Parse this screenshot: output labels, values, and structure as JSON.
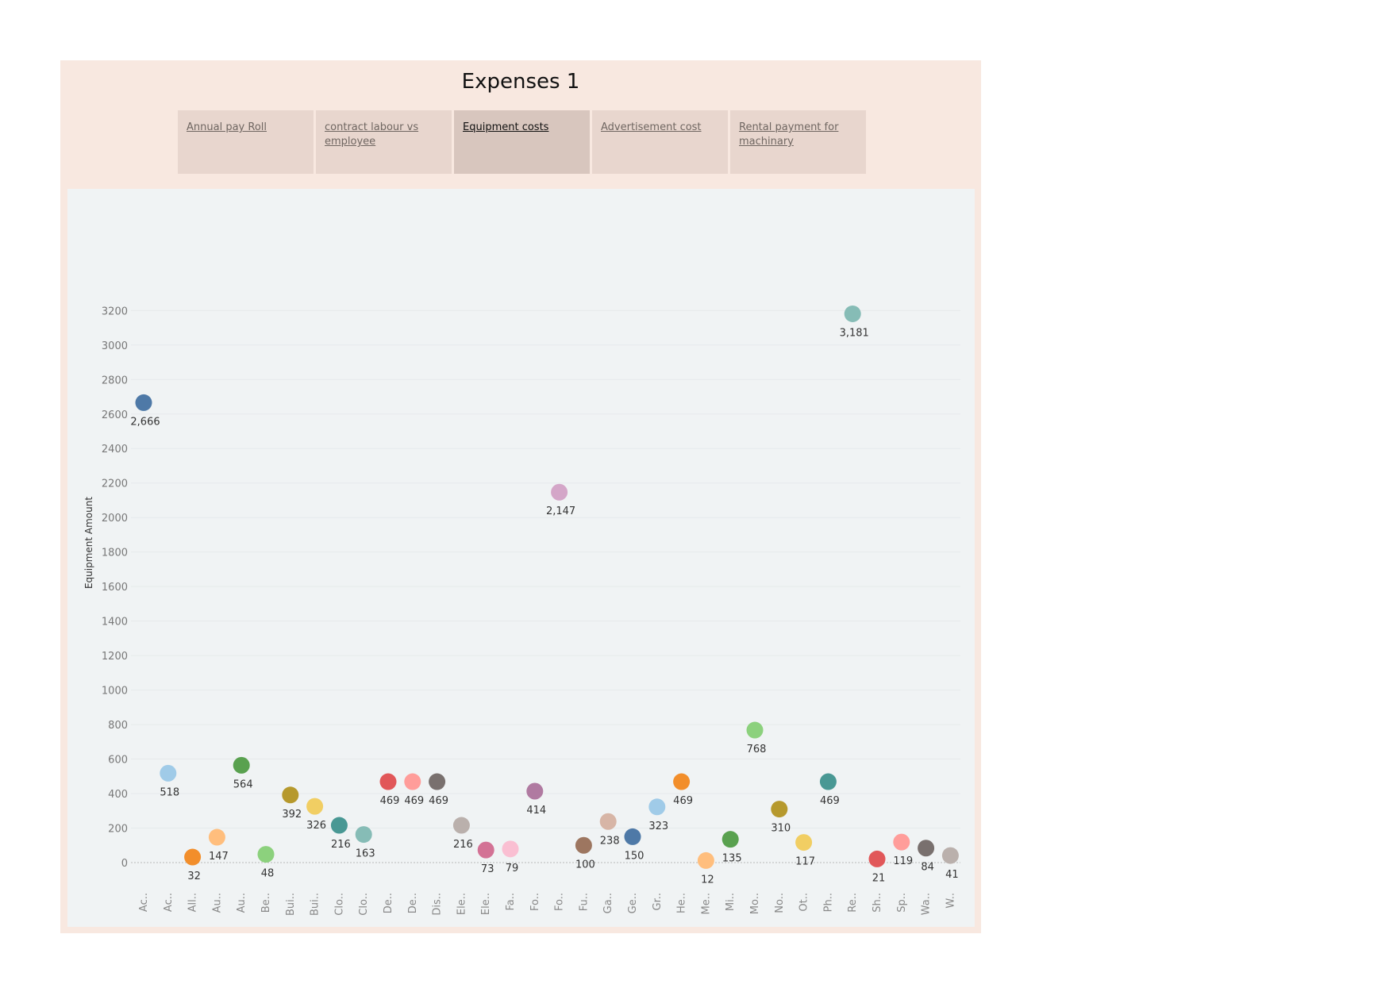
{
  "dashboard": {
    "title": "Expenses 1",
    "tabs": [
      {
        "label": "Annual pay Roll",
        "active": false
      },
      {
        "label": "contract labour vs employee",
        "active": false
      },
      {
        "label": "Equipment costs",
        "active": true
      },
      {
        "label": "Advertisement cost",
        "active": false
      },
      {
        "label": "Rental payment for machinary",
        "active": false
      }
    ]
  },
  "chart_data": {
    "type": "scatter",
    "title": "",
    "xlabel": "",
    "ylabel": "Equipment Amount",
    "ylim": [
      0,
      3200
    ],
    "yticks": [
      0,
      200,
      400,
      600,
      800,
      1000,
      1200,
      1400,
      1600,
      1800,
      2000,
      2200,
      2400,
      2600,
      2800,
      3000,
      3200
    ],
    "grid": true,
    "categories": [
      "Ac..",
      "Ac..",
      "All..",
      "Au..",
      "Au..",
      "Be..",
      "Bui..",
      "Bui..",
      "Clo..",
      "Clo..",
      "De..",
      "De..",
      "Dis..",
      "Ele..",
      "Ele..",
      "Fa..",
      "Fo..",
      "Fo..",
      "Fu..",
      "Ga..",
      "Ge..",
      "Gr..",
      "He..",
      "Me..",
      "Mi..",
      "Mo..",
      "No..",
      "Ot..",
      "Ph..",
      "Re..",
      "Sh..",
      "Sp..",
      "Wa..",
      "W.."
    ],
    "values": [
      2666,
      518,
      32,
      147,
      564,
      48,
      392,
      326,
      216,
      163,
      469,
      469,
      469,
      216,
      73,
      79,
      414,
      2147,
      100,
      238,
      150,
      323,
      469,
      12,
      135,
      768,
      310,
      117,
      469,
      3181,
      21,
      119,
      84,
      41
    ],
    "data_labels": [
      "2,666",
      "518",
      "32",
      "147",
      "564",
      "48",
      "392",
      "326",
      "216",
      "163",
      "469",
      "469",
      "469",
      "216",
      "73",
      "79",
      "414",
      "2,147",
      "100",
      "238",
      "150",
      "323",
      "469",
      "12",
      "135",
      "768",
      "310",
      "117",
      "469",
      "3,181",
      "21",
      "119",
      "84",
      "41"
    ],
    "colors": [
      "#4e79a7",
      "#a0cbe8",
      "#f28e2b",
      "#ffbe7d",
      "#59a14f",
      "#8cd17d",
      "#b6992d",
      "#f1ce63",
      "#499894",
      "#86bcb6",
      "#e15759",
      "#ff9d9a",
      "#79706e",
      "#bab0ac",
      "#d37295",
      "#fabfd2",
      "#b07aa1",
      "#d4a6c8",
      "#9d7660",
      "#d7b5a6",
      "#4e79a7",
      "#a0cbe8",
      "#f28e2b",
      "#ffbe7d",
      "#59a14f",
      "#8cd17d",
      "#b6992d",
      "#f1ce63",
      "#499894",
      "#86bcb6",
      "#e15759",
      "#ff9d9a",
      "#79706e",
      "#bab0ac"
    ]
  }
}
